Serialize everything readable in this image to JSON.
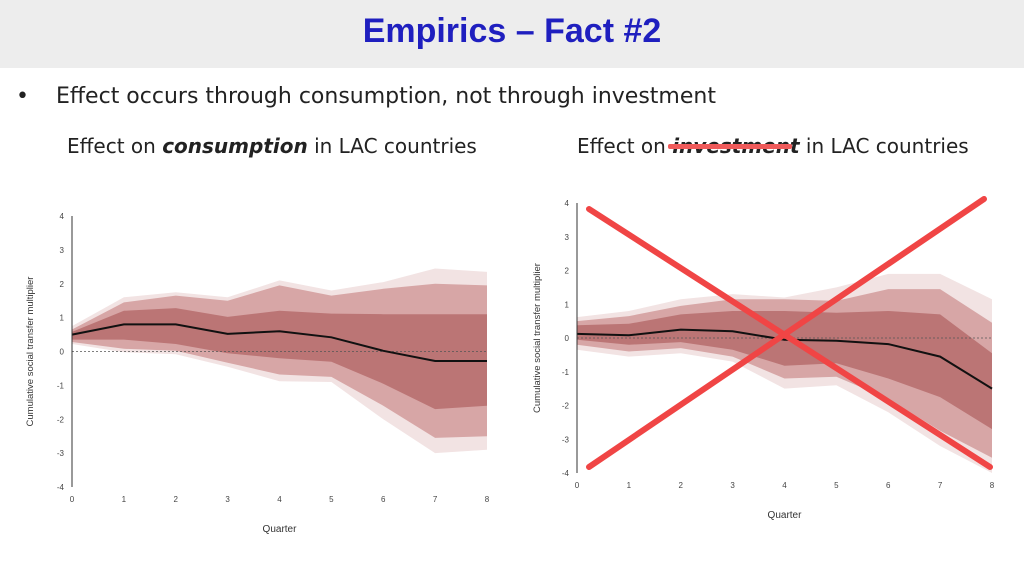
{
  "slide": {
    "title": "Empirics – Fact #2",
    "bullet_symbol": "•",
    "bullet": "Effect occurs through consumption, not through investment",
    "left_subtitle": {
      "before": "Effect on ",
      "emph": "consumption",
      "after": " in LAC countries"
    },
    "right_subtitle": {
      "before": "Effect on ",
      "emph": "investment",
      "after": " in LAC countries"
    },
    "colors": {
      "title": "#1f1fbf",
      "band_outer": "#f2e3e3",
      "band_mid": "#d7a6a6",
      "band_inner": "#bb7575",
      "line": "#111111",
      "cross": "#f04545"
    }
  },
  "chart_data": [
    {
      "type": "line",
      "title": "Effect on consumption in LAC countries",
      "xlabel": "Quarter",
      "ylabel": "Cumulative social transfer multiplier",
      "x": [
        0,
        1,
        2,
        3,
        4,
        5,
        6,
        7,
        8
      ],
      "xlim": [
        0,
        8
      ],
      "ylim": [
        -4,
        4
      ],
      "yticks": [
        -4,
        -3,
        -2,
        -1,
        0,
        1,
        2,
        3,
        4
      ],
      "series": [
        {
          "values": [
            0.5,
            0.8,
            0.8,
            0.52,
            0.6,
            0.42,
            0.02,
            -0.28,
            -0.28
          ]
        }
      ],
      "bands": [
        {
          "level": "outer",
          "upper": [
            0.75,
            1.6,
            1.75,
            1.6,
            2.1,
            1.8,
            2.05,
            2.45,
            2.35
          ],
          "lower": [
            0.22,
            -0.02,
            -0.08,
            -0.45,
            -0.88,
            -0.9,
            -2.0,
            -3.0,
            -2.9
          ]
        },
        {
          "level": "mid",
          "upper": [
            0.65,
            1.45,
            1.65,
            1.5,
            1.95,
            1.65,
            1.85,
            2.0,
            1.95
          ],
          "lower": [
            0.28,
            0.08,
            0.02,
            -0.33,
            -0.68,
            -0.75,
            -1.6,
            -2.55,
            -2.5
          ]
        },
        {
          "level": "inner",
          "upper": [
            0.58,
            1.2,
            1.28,
            1.02,
            1.2,
            1.12,
            1.1,
            1.1,
            1.1
          ],
          "lower": [
            0.35,
            0.35,
            0.22,
            -0.05,
            -0.2,
            -0.3,
            -0.95,
            -1.7,
            -1.6
          ]
        }
      ],
      "reference_line": 0,
      "grid": false
    },
    {
      "type": "line",
      "title": "Effect on investment in LAC countries",
      "xlabel": "Quarter",
      "ylabel": "Cumulative social transfer multiplier",
      "x": [
        0,
        1,
        2,
        3,
        4,
        5,
        6,
        7,
        8
      ],
      "xlim": [
        0,
        8
      ],
      "ylim": [
        -4,
        4
      ],
      "yticks": [
        -4,
        -3,
        -2,
        -1,
        0,
        1,
        2,
        3,
        4
      ],
      "series": [
        {
          "values": [
            0.12,
            0.08,
            0.25,
            0.2,
            -0.05,
            -0.08,
            -0.18,
            -0.55,
            -1.5
          ]
        }
      ],
      "bands": [
        {
          "level": "outer",
          "upper": [
            0.62,
            0.8,
            1.15,
            1.3,
            1.2,
            1.5,
            1.9,
            1.9,
            1.15
          ],
          "lower": [
            -0.35,
            -0.55,
            -0.45,
            -0.7,
            -1.5,
            -1.4,
            -2.2,
            -3.2,
            -4.0
          ]
        },
        {
          "level": "mid",
          "upper": [
            0.5,
            0.65,
            0.95,
            1.15,
            1.15,
            1.1,
            1.45,
            1.45,
            0.45
          ],
          "lower": [
            -0.2,
            -0.4,
            -0.3,
            -0.55,
            -1.2,
            -1.15,
            -1.8,
            -2.75,
            -3.55
          ]
        },
        {
          "level": "inner",
          "upper": [
            0.38,
            0.42,
            0.7,
            0.8,
            0.8,
            0.75,
            0.8,
            0.7,
            -0.45
          ],
          "lower": [
            -0.05,
            -0.2,
            -0.12,
            -0.35,
            -0.82,
            -0.75,
            -1.2,
            -1.75,
            -2.7
          ]
        }
      ],
      "reference_line": 0,
      "grid": false,
      "crossed_out": true
    }
  ]
}
